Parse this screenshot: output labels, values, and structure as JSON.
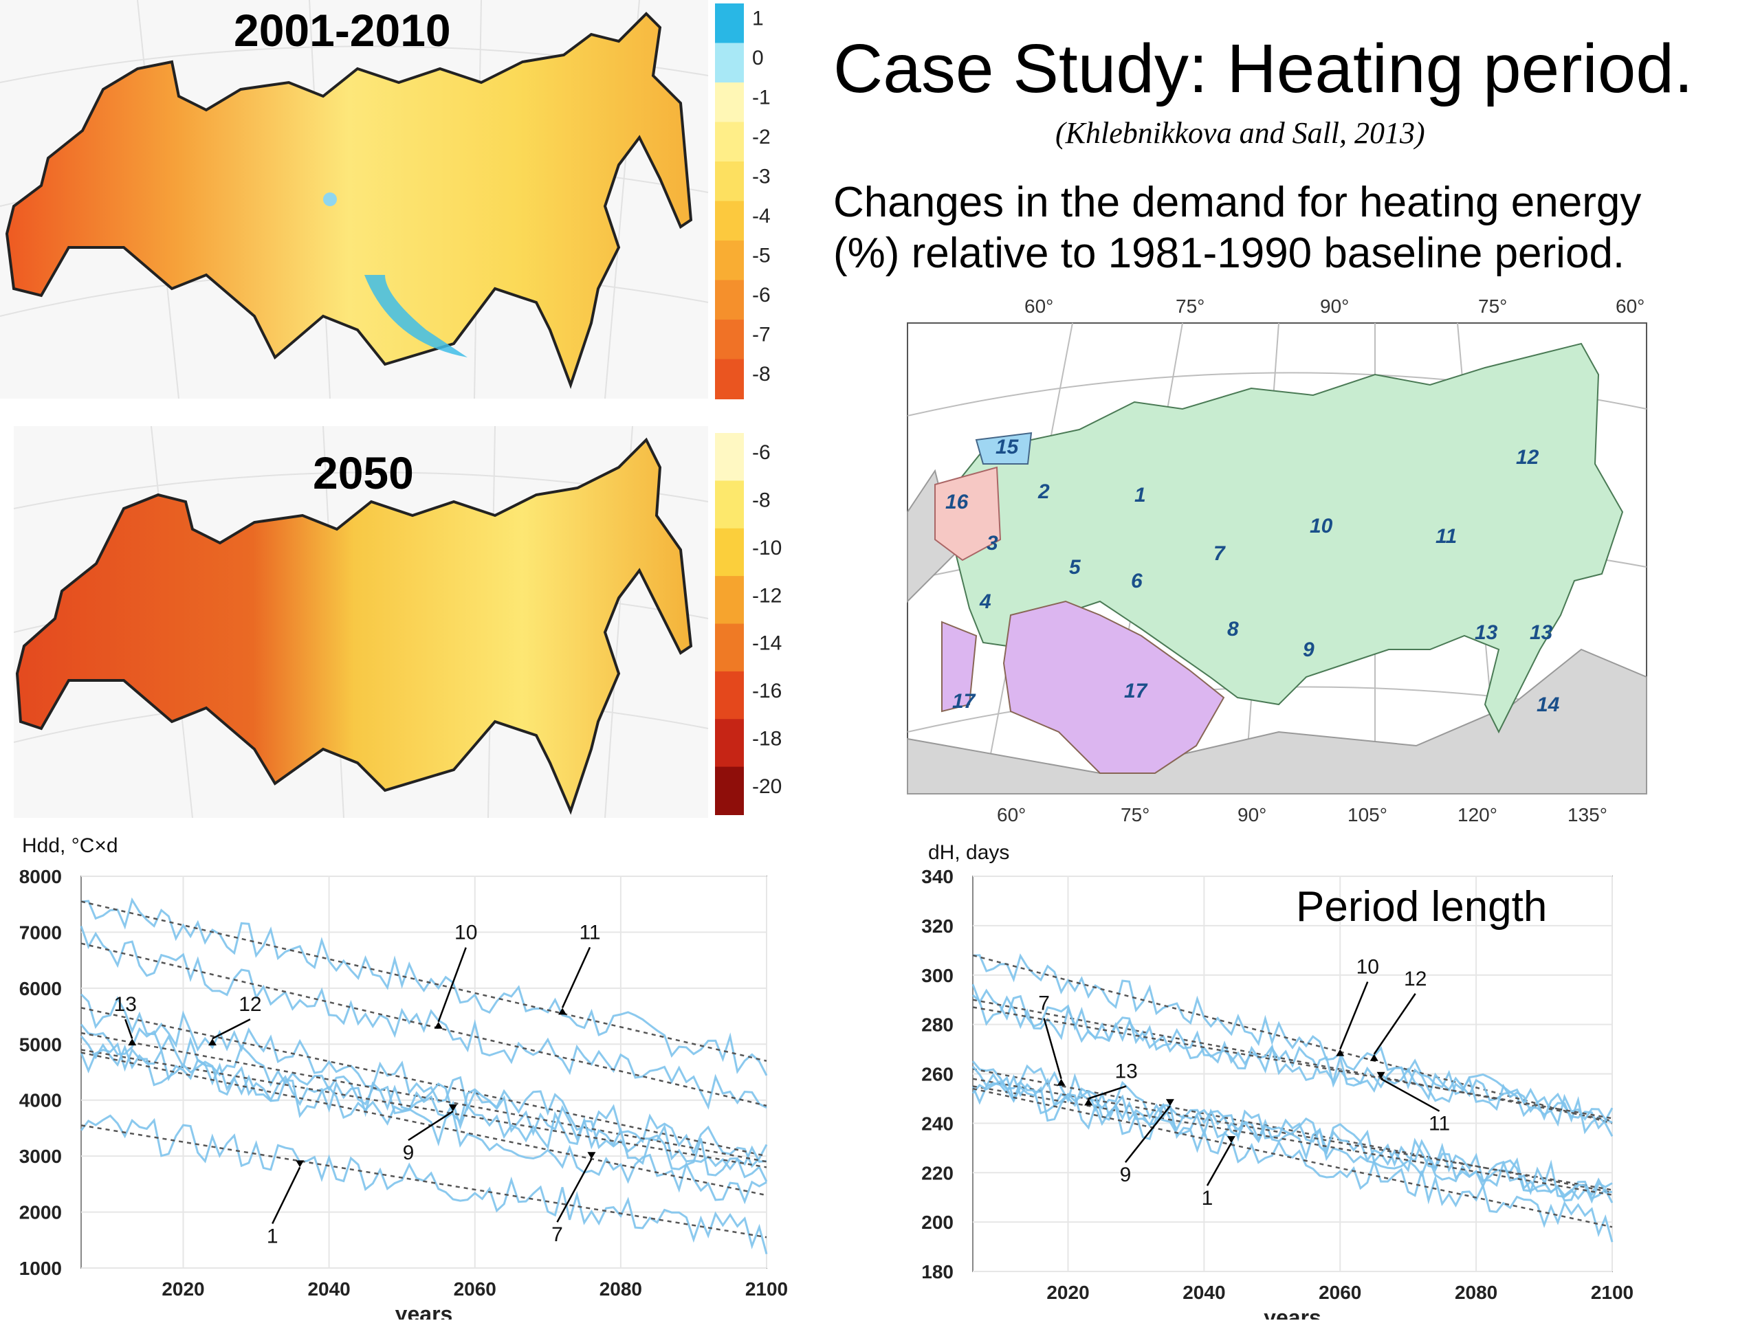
{
  "slide": {
    "title": "Case Study: Heating period.",
    "citation": "(Khlebnikkova and Sall, 2013)",
    "description_line1": "Changes in the demand for heating energy",
    "description_line2": "(%) relative to 1981-1990 baseline period."
  },
  "maps": {
    "top": {
      "title": "2001-2010",
      "colorbar_labels": [
        "1",
        "0",
        "-1",
        "-2",
        "-3",
        "-4",
        "-5",
        "-6",
        "-7",
        "-8"
      ],
      "colorbar_colors": [
        "#29b7e5",
        "#a8e8f6",
        "#fff7b5",
        "#ffee88",
        "#fde060",
        "#fcc93e",
        "#f9ad33",
        "#f5902c",
        "#f07226",
        "#ea5520"
      ]
    },
    "bottom": {
      "title": "2050",
      "colorbar_labels": [
        "-6",
        "-8",
        "-10",
        "-12",
        "-14",
        "-16",
        "-18",
        "-20"
      ],
      "colorbar_colors": [
        "#fff8c2",
        "#fde86c",
        "#fbcf3c",
        "#f6a42e",
        "#ef7a25",
        "#e4481c",
        "#c62515",
        "#8f0e0a"
      ]
    },
    "regions": {
      "top_labels": [
        "60°",
        "75°",
        "90°",
        "75°",
        "60°"
      ],
      "bottom_labels": [
        "60°",
        "75°",
        "90°",
        "105°",
        "120°",
        "135°"
      ],
      "region_numbers": [
        "15",
        "12",
        "2",
        "1",
        "16",
        "10",
        "11",
        "3",
        "7",
        "5",
        "6",
        "4",
        "8",
        "9",
        "13",
        "13",
        "17",
        "17",
        "14"
      ],
      "colors": {
        "green": "#c8ecd0",
        "pink": "#f6c8c4",
        "violet": "#dcb6f0",
        "blue": "#9fd6f2",
        "gray": "#d6d6d6"
      }
    }
  },
  "chart_data": [
    {
      "type": "line",
      "title": "",
      "ylabel": "Hdd, °C×d",
      "xlabel": "years",
      "xlim": [
        2006,
        2100
      ],
      "ylim": [
        1000,
        8000
      ],
      "x_ticks": [
        "2020",
        "2040",
        "2060",
        "2080",
        "2100"
      ],
      "y_ticks": [
        "1000",
        "2000",
        "3000",
        "4000",
        "5000",
        "6000",
        "7000",
        "8000"
      ],
      "grid": true,
      "series": [
        {
          "name": "11",
          "trend": [
            [
              2006,
              7550
            ],
            [
              2100,
              4700
            ]
          ]
        },
        {
          "name": "10",
          "trend": [
            [
              2006,
              6800
            ],
            [
              2100,
              3900
            ]
          ]
        },
        {
          "name": "12",
          "trend": [
            [
              2006,
              5650
            ],
            [
              2100,
              3000
            ]
          ]
        },
        {
          "name": "13",
          "trend": [
            [
              2006,
              5200
            ],
            [
              2100,
              2900
            ]
          ]
        },
        {
          "name": "9",
          "trend": [
            [
              2006,
              4900
            ],
            [
              2100,
              2800
            ]
          ]
        },
        {
          "name": "7",
          "trend": [
            [
              2006,
              4850
            ],
            [
              2100,
              2300
            ]
          ]
        },
        {
          "name": "1",
          "trend": [
            [
              2006,
              3550
            ],
            [
              2100,
              1550
            ]
          ]
        }
      ],
      "annotations": [
        {
          "text": "10",
          "x": 2055,
          "y": 5400
        },
        {
          "text": "11",
          "x": 2072,
          "y": 5650
        },
        {
          "text": "13",
          "x": 2013,
          "y": 5100
        },
        {
          "text": "12",
          "x": 2024,
          "y": 5100
        },
        {
          "text": "9",
          "x": 2057,
          "y": 3800
        },
        {
          "text": "1",
          "x": 2036,
          "y": 2800
        },
        {
          "text": "7",
          "x": 2076,
          "y": 2950
        }
      ]
    },
    {
      "type": "line",
      "title": "Period length",
      "ylabel": "dH, days",
      "xlabel": "years",
      "xlim": [
        2006,
        2100
      ],
      "ylim": [
        180,
        340
      ],
      "x_ticks": [
        "2020",
        "2040",
        "2060",
        "2080",
        "2100"
      ],
      "y_ticks": [
        "180",
        "200",
        "220",
        "240",
        "260",
        "280",
        "300",
        "320",
        "340"
      ],
      "grid": true,
      "series": [
        {
          "name": "10",
          "trend": [
            [
              2006,
              308
            ],
            [
              2100,
              240
            ]
          ]
        },
        {
          "name": "12",
          "trend": [
            [
              2006,
              290
            ],
            [
              2100,
              241
            ]
          ]
        },
        {
          "name": "11",
          "trend": [
            [
              2006,
              287
            ],
            [
              2100,
              242
            ]
          ]
        },
        {
          "name": "7",
          "trend": [
            [
              2006,
              262
            ],
            [
              2100,
              212
            ]
          ]
        },
        {
          "name": "13",
          "trend": [
            [
              2006,
              258
            ],
            [
              2100,
              213
            ]
          ]
        },
        {
          "name": "9",
          "trend": [
            [
              2006,
              255
            ],
            [
              2100,
              211
            ]
          ]
        },
        {
          "name": "1",
          "trend": [
            [
              2006,
              254
            ],
            [
              2100,
              198
            ]
          ]
        }
      ],
      "annotations": [
        {
          "text": "10",
          "x": 2060,
          "y": 270
        },
        {
          "text": "12",
          "x": 2065,
          "y": 268
        },
        {
          "text": "11",
          "x": 2066,
          "y": 258
        },
        {
          "text": "7",
          "x": 2019,
          "y": 258
        },
        {
          "text": "13",
          "x": 2023,
          "y": 250
        },
        {
          "text": "9",
          "x": 2035,
          "y": 247
        },
        {
          "text": "1",
          "x": 2044,
          "y": 232
        }
      ]
    }
  ]
}
